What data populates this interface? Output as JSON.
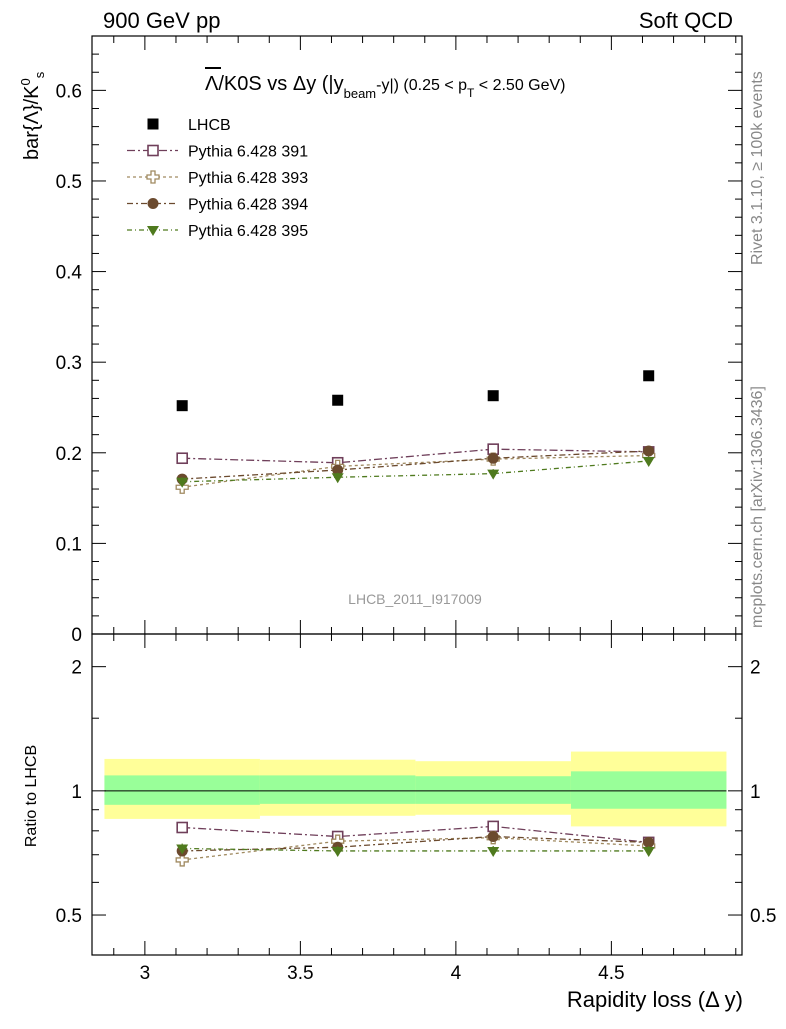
{
  "header": {
    "left": "900 GeV pp",
    "right": "Soft QCD"
  },
  "side_labels": {
    "rivet": "Rivet 3.1.10, ≥ 100k events",
    "mcplots": "mcplots.cern.ch [arXiv:1306.3436]"
  },
  "watermark": "LHCB_2011_I917009",
  "colors": {
    "data": "#000000",
    "p391": "#6f3f5a",
    "p393": "#a08a60",
    "p394": "#6b4a2e",
    "p395": "#4f7a1e",
    "band_inner": "#99ff99",
    "band_outer": "#ffff99"
  },
  "chart_data": [
    {
      "type": "scatter",
      "title_parts": {
        "main": "Λ/K0S vs Δy (|y",
        "sub1": "beam",
        "mid": "-y|) (0.25 < p",
        "sub2": "T",
        "end": " < 2.50 GeV)"
      },
      "ylabel": "bar{Λ}/K",
      "ylabel_sup": "0",
      "ylabel_sub": "s",
      "xlim": [
        2.83,
        4.92
      ],
      "ylim": [
        0,
        0.66
      ],
      "yticks": [
        0,
        0.1,
        0.2,
        0.3,
        0.4,
        0.5,
        0.6
      ],
      "ytick_labels": [
        "0",
        "0.1",
        "0.2",
        "0.3",
        "0.4",
        "0.5",
        "0.6"
      ],
      "legend_position": "top-left",
      "series": [
        {
          "name": "LHCB",
          "key": "data",
          "marker": "filled-square",
          "x": [
            3.12,
            3.62,
            4.12,
            4.62
          ],
          "y": [
            0.252,
            0.258,
            0.263,
            0.285
          ]
        },
        {
          "name": "Pythia 6.428 391",
          "key": "p391",
          "marker": "open-square",
          "dash": "8,3,2,3",
          "x": [
            3.12,
            3.62,
            4.12,
            4.62
          ],
          "y": [
            0.194,
            0.189,
            0.204,
            0.201
          ],
          "err": [
            0.005,
            0.004,
            0.004,
            0.004
          ]
        },
        {
          "name": "Pythia 6.428 393",
          "key": "p393",
          "marker": "open-cross",
          "dash": "3,3",
          "x": [
            3.12,
            3.62,
            4.12,
            4.62
          ],
          "y": [
            0.162,
            0.185,
            0.193,
            0.197
          ],
          "err": [
            0.005,
            0.005,
            0.005,
            0.005
          ]
        },
        {
          "name": "Pythia 6.428 394",
          "key": "p394",
          "marker": "filled-circle",
          "dash": "6,3,2,3",
          "x": [
            3.12,
            3.62,
            4.12,
            4.62
          ],
          "y": [
            0.171,
            0.181,
            0.194,
            0.202
          ],
          "err": [
            0.005,
            0.005,
            0.005,
            0.005
          ]
        },
        {
          "name": "Pythia 6.428 395",
          "key": "p395",
          "marker": "filled-triangle-down",
          "dash": "5,3,1,3",
          "x": [
            3.12,
            3.62,
            4.12,
            4.62
          ],
          "y": [
            0.168,
            0.173,
            0.177,
            0.191
          ],
          "err": [
            0.005,
            0.005,
            0.005,
            0.005
          ]
        }
      ]
    },
    {
      "type": "scatter",
      "ylabel": "Ratio to LHCB",
      "xlabel": "Rapidity loss (Δ y)",
      "xlim": [
        2.83,
        4.92
      ],
      "ylim": [
        0.4,
        2.4
      ],
      "log_y": true,
      "xticks": [
        3,
        3.5,
        4,
        4.5
      ],
      "xtick_labels": [
        "3",
        "3.5",
        "4",
        "4.5"
      ],
      "yticks": [
        0.5,
        1,
        2
      ],
      "ytick_labels": [
        "0.5",
        "1",
        "2"
      ],
      "bands": [
        {
          "x0": 2.87,
          "x1": 3.37,
          "inner": [
            0.925,
            1.09
          ],
          "outer": [
            0.855,
            1.195
          ]
        },
        {
          "x0": 3.37,
          "x1": 3.87,
          "inner": [
            0.93,
            1.09
          ],
          "outer": [
            0.87,
            1.19
          ]
        },
        {
          "x0": 3.87,
          "x1": 4.37,
          "inner": [
            0.93,
            1.085
          ],
          "outer": [
            0.875,
            1.18
          ]
        },
        {
          "x0": 4.37,
          "x1": 4.87,
          "inner": [
            0.905,
            1.115
          ],
          "outer": [
            0.82,
            1.245
          ]
        }
      ],
      "series": [
        {
          "name": "Pythia 6.428 391",
          "key": "p391",
          "marker": "open-square",
          "dash": "8,3,2,3",
          "x": [
            3.12,
            3.62,
            4.12,
            4.62
          ],
          "y": [
            0.815,
            0.775,
            0.82,
            0.75
          ],
          "err": [
            0.015,
            0.015,
            0.015,
            0.015
          ]
        },
        {
          "name": "Pythia 6.428 393",
          "key": "p393",
          "marker": "open-cross",
          "dash": "3,3",
          "x": [
            3.12,
            3.62,
            4.12,
            4.62
          ],
          "y": [
            0.68,
            0.755,
            0.77,
            0.735
          ],
          "err": [
            0.02,
            0.02,
            0.02,
            0.02
          ]
        },
        {
          "name": "Pythia 6.428 394",
          "key": "p394",
          "marker": "filled-circle",
          "dash": "6,3,2,3",
          "x": [
            3.12,
            3.62,
            4.12,
            4.62
          ],
          "y": [
            0.715,
            0.73,
            0.775,
            0.75
          ],
          "err": [
            0.02,
            0.02,
            0.02,
            0.02
          ]
        },
        {
          "name": "Pythia 6.428 395",
          "key": "p395",
          "marker": "filled-triangle-down",
          "dash": "5,3,1,3",
          "x": [
            3.12,
            3.62,
            4.12,
            4.62
          ],
          "y": [
            0.725,
            0.715,
            0.715,
            0.715
          ],
          "err": [
            0.02,
            0.02,
            0.02,
            0.02
          ]
        }
      ]
    }
  ]
}
